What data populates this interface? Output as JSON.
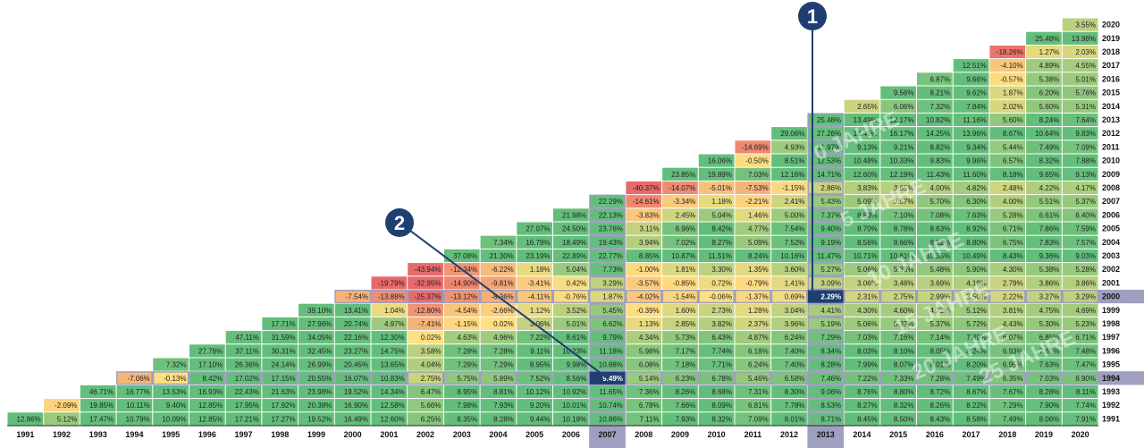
{
  "chart_data": {
    "type": "heatmap",
    "title": "",
    "xlabel": "",
    "ylabel": "",
    "x_categories": [
      "1991",
      "1992",
      "1993",
      "1994",
      "1995",
      "1996",
      "1997",
      "1998",
      "1999",
      "2000",
      "2001",
      "2002",
      "2003",
      "2004",
      "2005",
      "2006",
      "2007",
      "2008",
      "2009",
      "2010",
      "2011",
      "2012",
      "2013",
      "2014",
      "2015",
      "2016",
      "2017",
      "2018",
      "2019",
      "2020"
    ],
    "y_categories": [
      "2020",
      "2019",
      "2018",
      "2017",
      "2016",
      "2015",
      "2014",
      "2013",
      "2012",
      "2011",
      "2010",
      "2009",
      "2008",
      "2007",
      "2006",
      "2005",
      "2004",
      "2003",
      "2002",
      "2001",
      "2000",
      "1999",
      "1998",
      "1997",
      "1996",
      "1995",
      "1994",
      "1993",
      "1992",
      "1991"
    ],
    "x_axis_position": "bottom",
    "y_axis_position": "right",
    "highlight_x": [
      "2007",
      "2013"
    ],
    "highlight_y": [
      "2000",
      "1994"
    ],
    "rows": [
      [
        "",
        "",
        "",
        "",
        "",
        "",
        "",
        "",
        "",
        "",
        "",
        "",
        "",
        "",
        "",
        "",
        "",
        "",
        "",
        "",
        "",
        "",
        "",
        "",
        "",
        "",
        "",
        "",
        "",
        "3.55%"
      ],
      [
        "",
        "",
        "",
        "",
        "",
        "",
        "",
        "",
        "",
        "",
        "",
        "",
        "",
        "",
        "",
        "",
        "",
        "",
        "",
        "",
        "",
        "",
        "",
        "",
        "",
        "",
        "",
        "",
        "25.48%",
        "13.98%"
      ],
      [
        "",
        "",
        "",
        "",
        "",
        "",
        "",
        "",
        "",
        "",
        "",
        "",
        "",
        "",
        "",
        "",
        "",
        "",
        "",
        "",
        "",
        "",
        "",
        "",
        "",
        "",
        "",
        "-18.26%",
        "1.27%",
        "2.03%"
      ],
      [
        "",
        "",
        "",
        "",
        "",
        "",
        "",
        "",
        "",
        "",
        "",
        "",
        "",
        "",
        "",
        "",
        "",
        "",
        "",
        "",
        "",
        "",
        "",
        "",
        "",
        "",
        "12.51%",
        "-4.10%",
        "4.89%",
        "4.55%"
      ],
      [
        "",
        "",
        "",
        "",
        "",
        "",
        "",
        "",
        "",
        "",
        "",
        "",
        "",
        "",
        "",
        "",
        "",
        "",
        "",
        "",
        "",
        "",
        "",
        "",
        "",
        "6.87%",
        "9.66%",
        "-0.57%",
        "5.38%",
        "5.01%"
      ],
      [
        "",
        "",
        "",
        "",
        "",
        "",
        "",
        "",
        "",
        "",
        "",
        "",
        "",
        "",
        "",
        "",
        "",
        "",
        "",
        "",
        "",
        "",
        "",
        "",
        "9.56%",
        "8.21%",
        "9.62%",
        "1.87%",
        "6.20%",
        "5.76%"
      ],
      [
        "",
        "",
        "",
        "",
        "",
        "",
        "",
        "",
        "",
        "",
        "",
        "",
        "",
        "",
        "",
        "",
        "",
        "",
        "",
        "",
        "",
        "",
        "",
        "2.65%",
        "6.06%",
        "7.32%",
        "7.84%",
        "2.02%",
        "5.60%",
        "5.31%"
      ],
      [
        "",
        "",
        "",
        "",
        "",
        "",
        "",
        "",
        "",
        "",
        "",
        "",
        "",
        "",
        "",
        "",
        "",
        "",
        "",
        "",
        "",
        "",
        "25.48%",
        "13.49%",
        "12.17%",
        "10.82%",
        "11.16%",
        "5.60%",
        "8.24%",
        "7.64%"
      ],
      [
        "",
        "",
        "",
        "",
        "",
        "",
        "",
        "",
        "",
        "",
        "",
        "",
        "",
        "",
        "",
        "",
        "",
        "",
        "",
        "",
        "",
        "29.06%",
        "27.26%",
        "18.46%",
        "16.17%",
        "14.25%",
        "13.96%",
        "8.67%",
        "10.64%",
        "9.83%"
      ],
      [
        "",
        "",
        "",
        "",
        "",
        "",
        "",
        "",
        "",
        "",
        "",
        "",
        "",
        "",
        "",
        "",
        "",
        "",
        "",
        "",
        "-14.69%",
        "4.93%",
        "11.97%",
        "9.13%",
        "9.21%",
        "8.82%",
        "9.34%",
        "5.44%",
        "7.49%",
        "7.09%"
      ],
      [
        "",
        "",
        "",
        "",
        "",
        "",
        "",
        "",
        "",
        "",
        "",
        "",
        "",
        "",
        "",
        "",
        "",
        "",
        "",
        "16.06%",
        "-0.50%",
        "8.51%",
        "12.53%",
        "10.48%",
        "10.33%",
        "9.83%",
        "9.96%",
        "6.57%",
        "8.32%",
        "7.88%"
      ],
      [
        "",
        "",
        "",
        "",
        "",
        "",
        "",
        "",
        "",
        "",
        "",
        "",
        "",
        "",
        "",
        "",
        "",
        "",
        "23.85%",
        "19.89%",
        "7.03%",
        "12.16%",
        "14.71%",
        "12.60%",
        "12.19%",
        "11.43%",
        "11.60%",
        "8.18%",
        "9.65%",
        "9.13%"
      ],
      [
        "",
        "",
        "",
        "",
        "",
        "",
        "",
        "",
        "",
        "",
        "",
        "",
        "",
        "",
        "",
        "",
        "",
        "-40.37%",
        "-14.07%",
        "-5.01%",
        "-7.53%",
        "-1.15%",
        "2.86%",
        "3.83%",
        "3.65%",
        "4.00%",
        "4.82%",
        "2.48%",
        "4.22%",
        "4.17%"
      ],
      [
        "",
        "",
        "",
        "",
        "",
        "",
        "",
        "",
        "",
        "",
        "",
        "",
        "",
        "",
        "",
        "",
        "22.29%",
        "-14.61%",
        "-3.34%",
        "1.18%",
        "-2.21%",
        "2.41%",
        "5.43%",
        "5.09%",
        "3.57%",
        "5.70%",
        "6.30%",
        "4.00%",
        "5.51%",
        "5.37%"
      ],
      [
        "",
        "",
        "",
        "",
        "",
        "",
        "",
        "",
        "",
        "",
        "",
        "",
        "",
        "",
        "",
        "21.98%",
        "22.13%",
        "-3.83%",
        "2.45%",
        "5.04%",
        "1.46%",
        "5.00%",
        "7.37%",
        "8.83%",
        "7.10%",
        "7.08%",
        "7.63%",
        "5.28%",
        "6.61%",
        "6.40%"
      ],
      [
        "",
        "",
        "",
        "",
        "",
        "",
        "",
        "",
        "",
        "",
        "",
        "",
        "",
        "",
        "27.07%",
        "24.50%",
        "23.76%",
        "3.11%",
        "6.96%",
        "8.42%",
        "4.77%",
        "7.54%",
        "9.40%",
        "8.70%",
        "8.78%",
        "8.63%",
        "8.92%",
        "6.71%",
        "7.86%",
        "7.59%"
      ],
      [
        "",
        "",
        "",
        "",
        "",
        "",
        "",
        "",
        "",
        "",
        "",
        "",
        "",
        "7.34%",
        "16.79%",
        "18.49%",
        "19.43%",
        "3.94%",
        "7.02%",
        "8.27%",
        "5.09%",
        "7.52%",
        "9.19%",
        "8.56%",
        "8.66%",
        "8.52%",
        "8.80%",
        "6.75%",
        "7.83%",
        "7.57%"
      ],
      [
        "",
        "",
        "",
        "",
        "",
        "",
        "",
        "",
        "",
        "",
        "",
        "",
        "37.08%",
        "21.30%",
        "23.19%",
        "22.89%",
        "22.77%",
        "8.85%",
        "10.87%",
        "11.51%",
        "8.24%",
        "10.16%",
        "11.47%",
        "10.71%",
        "10.61%",
        "10.35%",
        "10.49%",
        "8.43%",
        "9.36%",
        "9.03%"
      ],
      [
        "",
        "",
        "",
        "",
        "",
        "",
        "",
        "",
        "",
        "",
        "",
        "-43.94%",
        "-12.34%",
        "-6.22%",
        "1.18%",
        "5.04%",
        "7.73%",
        "-1.00%",
        "1.81%",
        "3.30%",
        "1.35%",
        "3.60%",
        "5.27%",
        "5.06%",
        "5.38%",
        "5.48%",
        "5.90%",
        "4.30%",
        "5.38%",
        "5.28%"
      ],
      [
        "",
        "",
        "",
        "",
        "",
        "",
        "",
        "",
        "",
        "",
        "-19.79%",
        "-32.95%",
        "-14.90%",
        "-9.81%",
        "-3.41%",
        "0.42%",
        "3.29%",
        "-3.57%",
        "-0.85%",
        "0.72%",
        "-0.79%",
        "1.41%",
        "3.09%",
        "3.06%",
        "3.48%",
        "3.69%",
        "4.19%",
        "2.79%",
        "3.86%",
        "3.86%"
      ],
      [
        "",
        "",
        "",
        "",
        "",
        "",
        "",
        "",
        "",
        "-7.54%",
        "-13.88%",
        "-25.37%",
        "-13.12%",
        "-8.36%",
        "-4.11%",
        "-0.76%",
        "1.87%",
        "-4.02%",
        "-1.54%",
        "-0.06%",
        "-1.37%",
        "0.69%",
        "2.29%",
        "2.31%",
        "2.75%",
        "2.99%",
        "3.50%",
        "2.22%",
        "3.27%",
        "3.29%"
      ],
      [
        "",
        "",
        "",
        "",
        "",
        "",
        "",
        "",
        "39.10%",
        "13.41%",
        "1.04%",
        "-12.80%",
        "-4.54%",
        "-2.66%",
        "1.12%",
        "3.52%",
        "5.45%",
        "-0.39%",
        "1.60%",
        "2.73%",
        "1.28%",
        "3.04%",
        "4.41%",
        "4.30%",
        "4.60%",
        "4.72%",
        "5.12%",
        "3.81%",
        "4.75%",
        "4.69%"
      ],
      [
        "",
        "",
        "",
        "",
        "",
        "",
        "",
        "17.71%",
        "27.96%",
        "20.74%",
        "4.97%",
        "-7.41%",
        "-1.15%",
        "0.02%",
        "3.06%",
        "5.01%",
        "6.62%",
        "1.13%",
        "2.85%",
        "3.82%",
        "2.37%",
        "3.96%",
        "5.19%",
        "5.06%",
        "5.37%",
        "5.37%",
        "5.72%",
        "4.43%",
        "5.30%",
        "5.23%"
      ],
      [
        "",
        "",
        "",
        "",
        "",
        "",
        "47.11%",
        "31.59%",
        "34.05%",
        "22.16%",
        "12.30%",
        "0.02%",
        "4.63%",
        "4.96%",
        "7.22%",
        "8.61%",
        "9.79%",
        "4.34%",
        "5.73%",
        "6.43%",
        "4.87%",
        "6.24%",
        "7.29%",
        "7.03%",
        "7.16%",
        "7.14%",
        "7.39%",
        "6.07%",
        "6.85%",
        "6.71%"
      ],
      [
        "",
        "",
        "",
        "",
        "",
        "27.78%",
        "37.11%",
        "30.31%",
        "32.45%",
        "23.27%",
        "14.75%",
        "3.58%",
        "7.28%",
        "7.28%",
        "9.11%",
        "10.23%",
        "11.18%",
        "5.98%",
        "7.17%",
        "7.74%",
        "6.18%",
        "7.40%",
        "8.34%",
        "8.03%",
        "8.10%",
        "8.05%",
        "8.24%",
        "6.93%",
        "7.65%",
        "7.48%"
      ],
      [
        "",
        "",
        "",
        "",
        "7.32%",
        "17.10%",
        "26.36%",
        "24.14%",
        "26.99%",
        "20.45%",
        "13.65%",
        "4.04%",
        "7.28%",
        "7.29%",
        "8.95%",
        "9.98%",
        "10.88%",
        "6.08%",
        "7.18%",
        "7.71%",
        "6.24%",
        "7.40%",
        "8.28%",
        "7.99%",
        "8.07%",
        "8.01%",
        "8.20%",
        "6.95%",
        "7.63%",
        "7.47%"
      ],
      [
        "",
        "",
        "",
        "-7.06%",
        "-0.13%",
        "8.42%",
        "17.02%",
        "17.15%",
        "20.55%",
        "16.07%",
        "10.83%",
        "2.75%",
        "5.75%",
        "5.89%",
        "7.52%",
        "8.56%",
        "9.49%",
        "5.14%",
        "6.23%",
        "6.78%",
        "5.46%",
        "6.58%",
        "7.46%",
        "7.22%",
        "7.33%",
        "7.28%",
        "7.49%",
        "6.35%",
        "7.03%",
        "6.90%"
      ],
      [
        "",
        "",
        "46.71%",
        "16.77%",
        "13.53%",
        "16.93%",
        "22.43%",
        "21.63%",
        "23.98%",
        "19.52%",
        "14.34%",
        "6.47%",
        "8.95%",
        "8.81%",
        "10.12%",
        "10.92%",
        "11.65%",
        "7.36%",
        "8.26%",
        "8.68%",
        "7.31%",
        "8.30%",
        "9.06%",
        "8.76%",
        "8.80%",
        "8.72%",
        "8.67%",
        "7.67%",
        "8.28%",
        "8.11%"
      ],
      [
        "",
        "-2.09%",
        "19.85%",
        "10.11%",
        "9.40%",
        "12.85%",
        "17.95%",
        "17.92%",
        "20.38%",
        "16.90%",
        "12.58%",
        "5.66%",
        "7.98%",
        "7.93%",
        "9.20%",
        "10.01%",
        "10.74%",
        "6.78%",
        "7.66%",
        "8.09%",
        "6.81%",
        "7.78%",
        "8.53%",
        "8.27%",
        "8.32%",
        "8.26%",
        "8.22%",
        "7.29%",
        "7.90%",
        "7.74%"
      ],
      [
        "12.86%",
        "5.12%",
        "17.47%",
        "10.79%",
        "10.09%",
        "12.85%",
        "17.21%",
        "17.27%",
        "19.52%",
        "16.49%",
        "12.60%",
        "6.25%",
        "8.35%",
        "8.28%",
        "9.44%",
        "10.18%",
        "10.86%",
        "7.11%",
        "7.93%",
        "8.32%",
        "7.09%",
        "8.01%",
        "8.71%",
        "8.45%",
        "8.50%",
        "8.43%",
        "8.58%",
        "7.49%",
        "8.06%",
        "7.91%"
      ]
    ],
    "colors": {
      "red": "#e8696b",
      "yellow": "#fedf81",
      "green": "#63be7b",
      "highlight_band": "#9fa0bf",
      "highlight_cell": "#1f3f73",
      "annotation": "#1f3f73"
    },
    "annotations": [
      {
        "label": "1",
        "target_x": "2013",
        "target_y": "2000"
      },
      {
        "label": "2",
        "target_x": "2007",
        "target_y": "1994"
      }
    ],
    "watermarks": [
      "0 JAHRE",
      "5 JAHRE",
      "10 JAHRE",
      "15 JAHRE",
      "20 JAHRE",
      "25 JAHRE"
    ]
  }
}
